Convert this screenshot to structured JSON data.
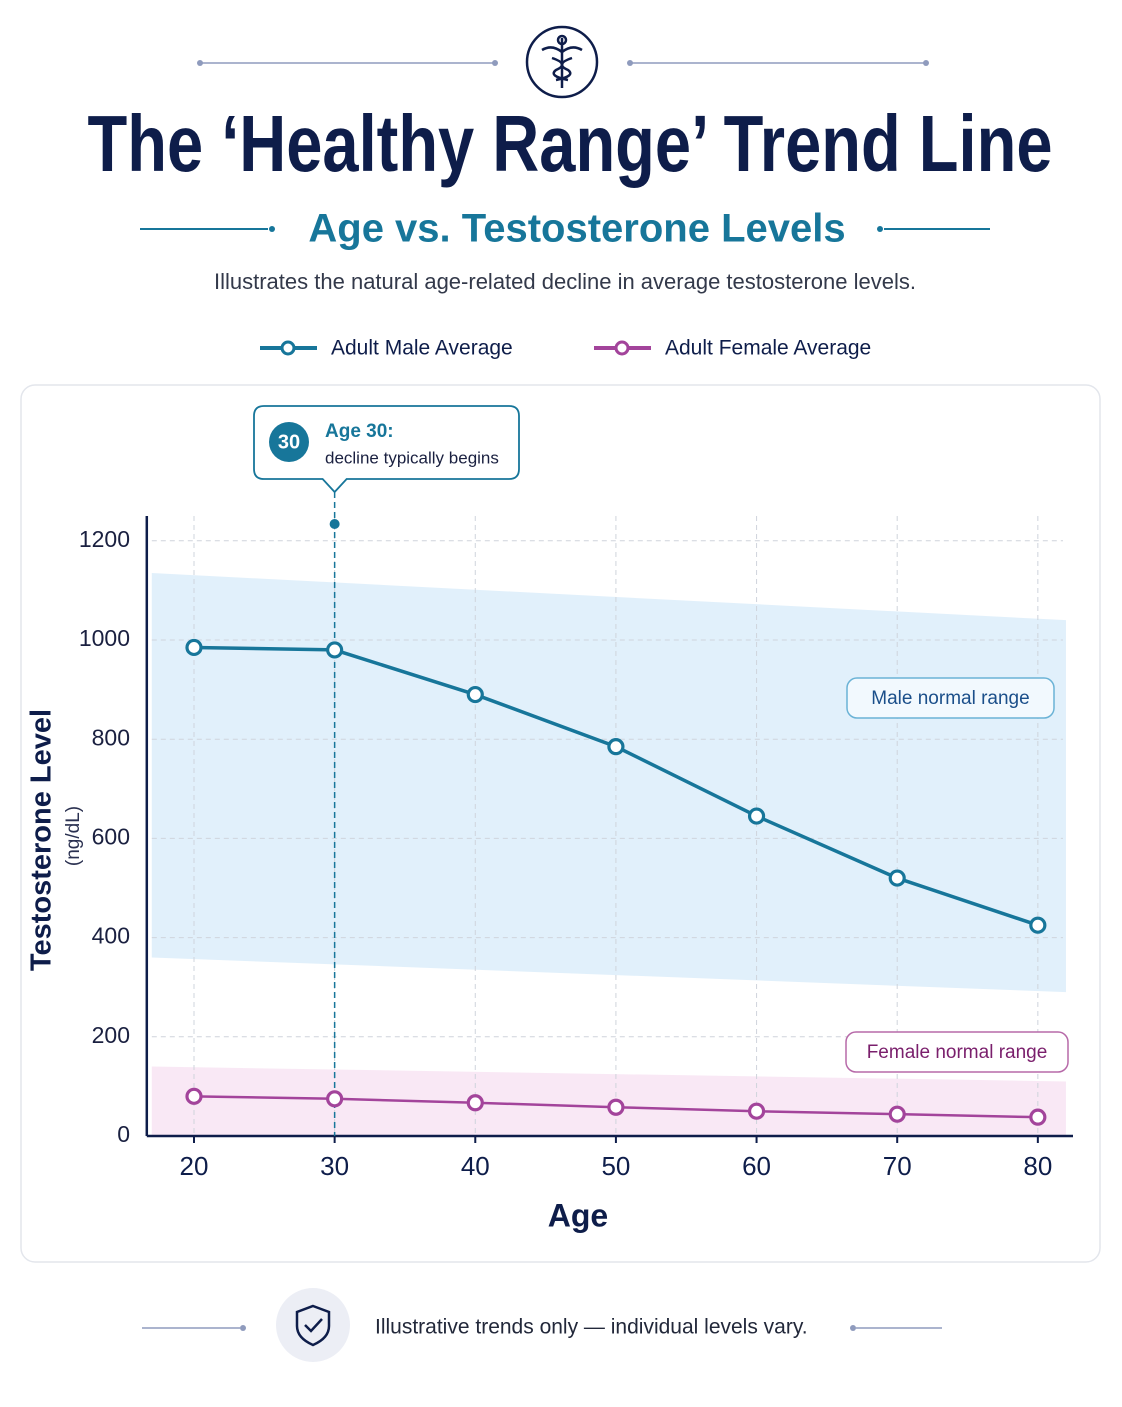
{
  "chart_data": {
    "type": "line",
    "title": "The ‘Healthy Range’ Trend Line",
    "subtitle": "Age vs. Testosterone Levels",
    "description": "Illustrates the natural age-related decline in average testosterone levels.",
    "x_label": "Age",
    "y_label": "Testosterone Level",
    "y_unit": "(ng/dL)",
    "x": [
      20,
      30,
      40,
      50,
      60,
      70,
      80
    ],
    "series": [
      {
        "name": "Adult Male Average",
        "color": "#17769a",
        "values": [
          985,
          980,
          890,
          785,
          645,
          520,
          425
        ]
      },
      {
        "name": "Adult Female Average",
        "color": "#a3449b",
        "values": [
          80,
          75,
          67,
          58,
          50,
          44,
          38
        ]
      }
    ],
    "bands": [
      {
        "name": "Male normal range",
        "color": "#dcedfa",
        "x": [
          17,
          82
        ],
        "lower": [
          360,
          290
        ],
        "upper": [
          1135,
          1040
        ]
      },
      {
        "name": "Female normal range",
        "color": "#f8e4f3",
        "x": [
          17,
          82
        ],
        "lower": [
          0,
          0
        ],
        "upper": [
          140,
          110
        ]
      }
    ],
    "annotation": {
      "x": 30,
      "badge": "30",
      "title": "Age 30:",
      "text": "decline typically begins"
    },
    "xlim": [
      17,
      82.5
    ],
    "ylim": [
      0,
      1250
    ],
    "xticks": [
      20,
      30,
      40,
      50,
      60,
      70,
      80
    ],
    "yticks": [
      0,
      200,
      400,
      600,
      800,
      1000,
      1200
    ],
    "grid": true,
    "footnote": "Illustrative trends only — individual levels vary."
  }
}
